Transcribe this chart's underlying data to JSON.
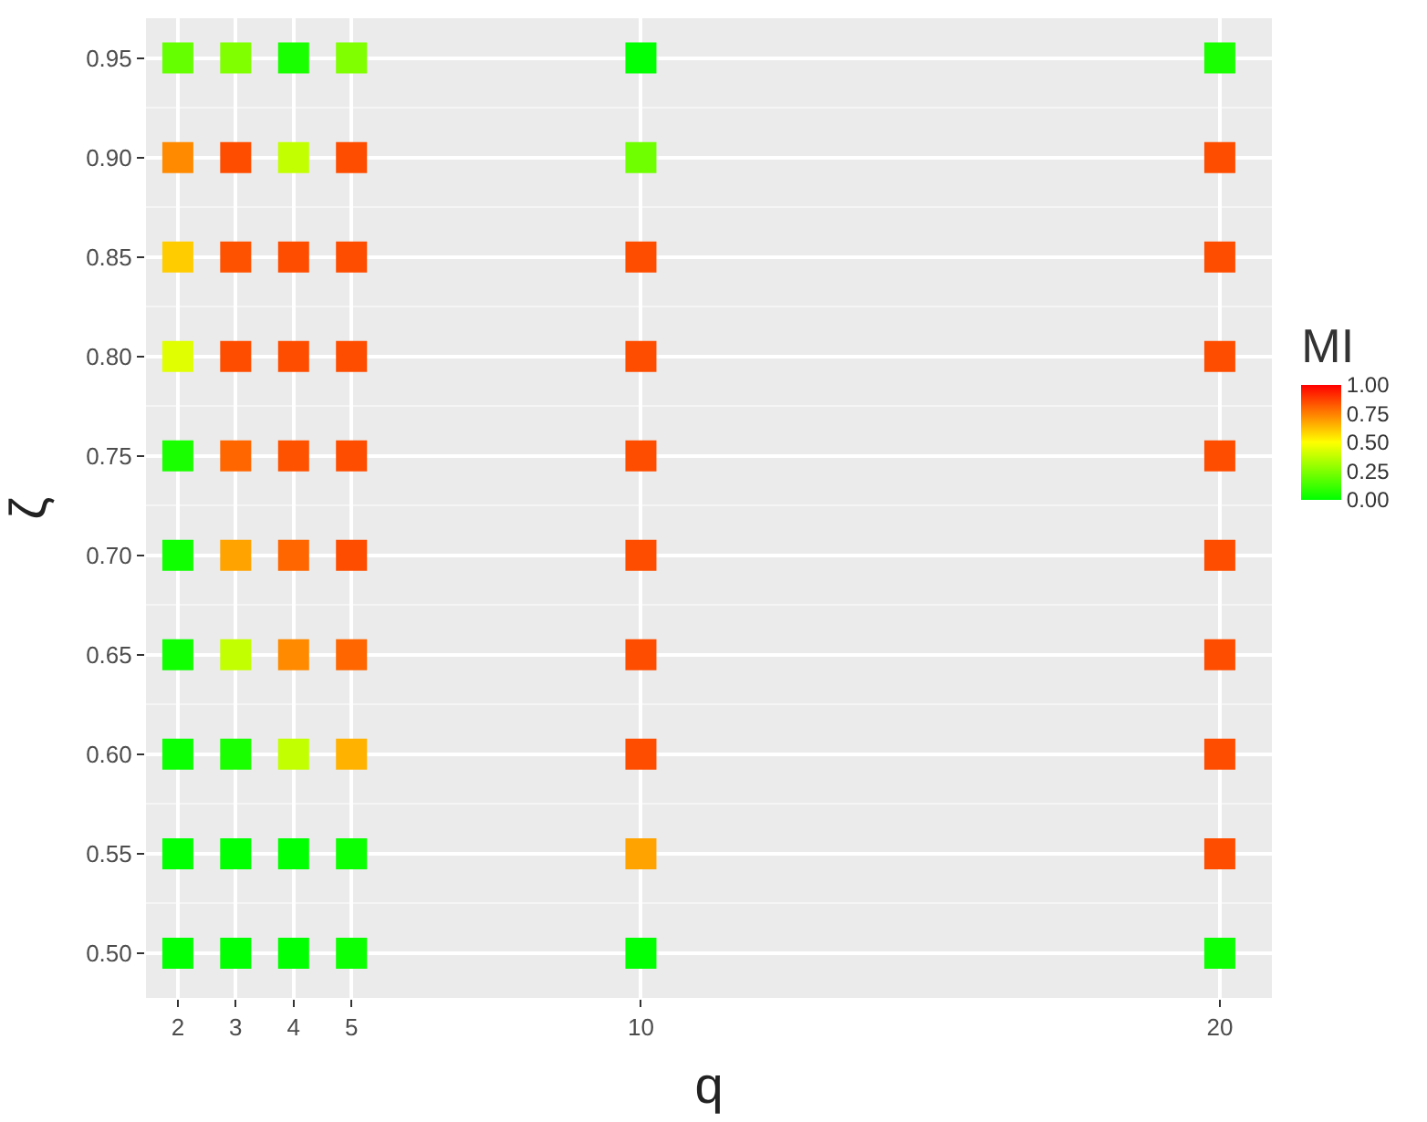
{
  "chart_data": {
    "type": "scatter",
    "xlabel": "q",
    "ylabel": "ζ",
    "clabel": "MI",
    "marker": "square",
    "grid": true,
    "x": [
      2,
      2,
      2,
      2,
      2,
      2,
      2,
      2,
      2,
      2,
      3,
      3,
      3,
      3,
      3,
      3,
      3,
      3,
      3,
      3,
      4,
      4,
      4,
      4,
      4,
      4,
      4,
      4,
      4,
      4,
      5,
      5,
      5,
      5,
      5,
      5,
      5,
      5,
      5,
      5,
      10,
      10,
      10,
      10,
      10,
      10,
      10,
      10,
      10,
      10,
      20,
      20,
      20,
      20,
      20,
      20,
      20,
      20,
      20,
      20
    ],
    "values": [
      0.95,
      0.9,
      0.85,
      0.8,
      0.75,
      0.7,
      0.65,
      0.6,
      0.55,
      0.5,
      0.95,
      0.9,
      0.85,
      0.8,
      0.75,
      0.7,
      0.65,
      0.6,
      0.55,
      0.5,
      0.95,
      0.9,
      0.85,
      0.8,
      0.75,
      0.7,
      0.65,
      0.6,
      0.55,
      0.5,
      0.95,
      0.9,
      0.85,
      0.8,
      0.75,
      0.7,
      0.65,
      0.6,
      0.55,
      0.5,
      0.95,
      0.9,
      0.85,
      0.8,
      0.75,
      0.7,
      0.65,
      0.6,
      0.55,
      0.5,
      0.95,
      0.9,
      0.85,
      0.8,
      0.75,
      0.7,
      0.65,
      0.6,
      0.55,
      0.5
    ],
    "cvalues": [
      0.2,
      0.73,
      0.6,
      0.44,
      0.05,
      0.03,
      0.03,
      0.02,
      0,
      0,
      0.25,
      0.85,
      0.84,
      0.85,
      0.8,
      0.68,
      0.38,
      0.05,
      0,
      0,
      0.05,
      0.38,
      0.85,
      0.85,
      0.84,
      0.8,
      0.73,
      0.38,
      0,
      0,
      0.25,
      0.85,
      0.85,
      0.85,
      0.85,
      0.85,
      0.8,
      0.65,
      0.02,
      0.02,
      0,
      0.22,
      0.85,
      0.85,
      0.85,
      0.85,
      0.85,
      0.85,
      0.68,
      0,
      0.05,
      0.85,
      0.85,
      0.85,
      0.85,
      0.85,
      0.85,
      0.85,
      0.85,
      0.02
    ],
    "clim": [
      0,
      1
    ],
    "cticks": [
      {
        "value": 0,
        "label": "0.00"
      },
      {
        "value": 0.25,
        "label": "0.25"
      },
      {
        "value": 0.5,
        "label": "0.50"
      },
      {
        "value": 0.75,
        "label": "0.75"
      },
      {
        "value": 1,
        "label": "1.00"
      }
    ],
    "xlim": [
      1.45,
      20.9
    ],
    "xticks": [
      2,
      3,
      4,
      5,
      10,
      20
    ],
    "ylim": [
      0.4775,
      0.97
    ],
    "yticks": [
      {
        "value": 0.5,
        "label": "0.50"
      },
      {
        "value": 0.55,
        "label": "0.55"
      },
      {
        "value": 0.6,
        "label": "0.60"
      },
      {
        "value": 0.65,
        "label": "0.65"
      },
      {
        "value": 0.7,
        "label": "0.70"
      },
      {
        "value": 0.75,
        "label": "0.75"
      },
      {
        "value": 0.8,
        "label": "0.80"
      },
      {
        "value": 0.85,
        "label": "0.85"
      },
      {
        "value": 0.9,
        "label": "0.90"
      },
      {
        "value": 0.95,
        "label": "0.95"
      }
    ]
  }
}
